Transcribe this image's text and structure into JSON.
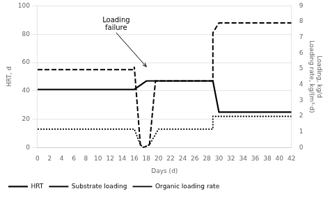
{
  "chart_data": {
    "type": "line",
    "xlabel": "Days (d)",
    "ylabel": "HRT, d",
    "y2label": "Loading, kg/d\nLoading rate, kg/(m³·d)",
    "xlim": [
      0,
      42
    ],
    "xticks": [
      0,
      2,
      4,
      6,
      8,
      10,
      12,
      14,
      16,
      18,
      20,
      22,
      24,
      26,
      28,
      30,
      32,
      34,
      36,
      38,
      40,
      42
    ],
    "ylim": [
      0,
      100
    ],
    "yticks": [
      0,
      20,
      40,
      60,
      80,
      100
    ],
    "y2lim": [
      0,
      9
    ],
    "y2ticks": [
      0,
      1,
      2,
      3,
      4,
      5,
      6,
      7,
      8,
      9
    ],
    "grid": "y",
    "legend": "bottom",
    "series": [
      {
        "name": "HRT",
        "color": "#000000",
        "line_style": "solid",
        "x": [
          0,
          16,
          16,
          18,
          18,
          29,
          29,
          30,
          30,
          42
        ],
        "values": [
          41,
          41,
          41,
          47,
          47,
          47,
          47,
          25,
          25,
          25
        ]
      },
      {
        "name": "Substrate loading",
        "color": "#000000",
        "line_style": "dashed",
        "x": [
          0,
          16,
          16,
          17,
          17.5,
          17.5,
          18.5,
          18.5,
          19.5,
          19.5,
          29,
          29,
          30,
          30,
          42
        ],
        "values": [
          55,
          55,
          57,
          2,
          0,
          0,
          2,
          2,
          47,
          47,
          47,
          81,
          88,
          88,
          88
        ]
      },
      {
        "name": "Organic loading rate",
        "color": "#000000",
        "line_style": "dotted",
        "x": [
          0,
          16,
          16,
          17,
          17.5,
          17.5,
          18.5,
          18.5,
          20,
          20,
          29,
          29,
          30,
          30,
          42
        ],
        "values": [
          13,
          13,
          13,
          2,
          0,
          0,
          2,
          2,
          13,
          13,
          13,
          22,
          22,
          22,
          22
        ]
      }
    ],
    "annotations": [
      {
        "text": "Loading\nfailure",
        "x": 18.0,
        "y": 57,
        "text_x": 13,
        "text_y": 82
      }
    ]
  }
}
